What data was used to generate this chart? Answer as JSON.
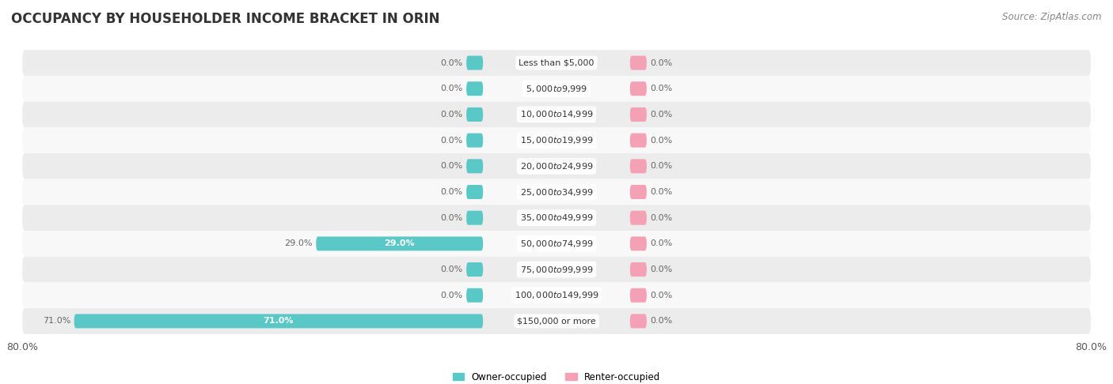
{
  "title": "OCCUPANCY BY HOUSEHOLDER INCOME BRACKET IN ORIN",
  "source": "Source: ZipAtlas.com",
  "categories": [
    "Less than $5,000",
    "$5,000 to $9,999",
    "$10,000 to $14,999",
    "$15,000 to $19,999",
    "$20,000 to $24,999",
    "$25,000 to $34,999",
    "$35,000 to $49,999",
    "$50,000 to $74,999",
    "$75,000 to $99,999",
    "$100,000 to $149,999",
    "$150,000 or more"
  ],
  "owner_pct": [
    0.0,
    0.0,
    0.0,
    0.0,
    0.0,
    0.0,
    0.0,
    29.0,
    0.0,
    0.0,
    71.0
  ],
  "renter_pct": [
    0.0,
    0.0,
    0.0,
    0.0,
    0.0,
    0.0,
    0.0,
    0.0,
    0.0,
    0.0,
    0.0
  ],
  "owner_color": "#5bc8c8",
  "renter_color": "#f4a0b5",
  "label_color_dark": "#666666",
  "label_color_white": "#ffffff",
  "axis_max": 80.0,
  "bar_height": 0.55,
  "title_fontsize": 12,
  "source_fontsize": 8.5,
  "tick_fontsize": 9,
  "label_fontsize": 8,
  "cat_fontsize": 8,
  "row_colors": [
    "#ececec",
    "#f8f8f8"
  ]
}
